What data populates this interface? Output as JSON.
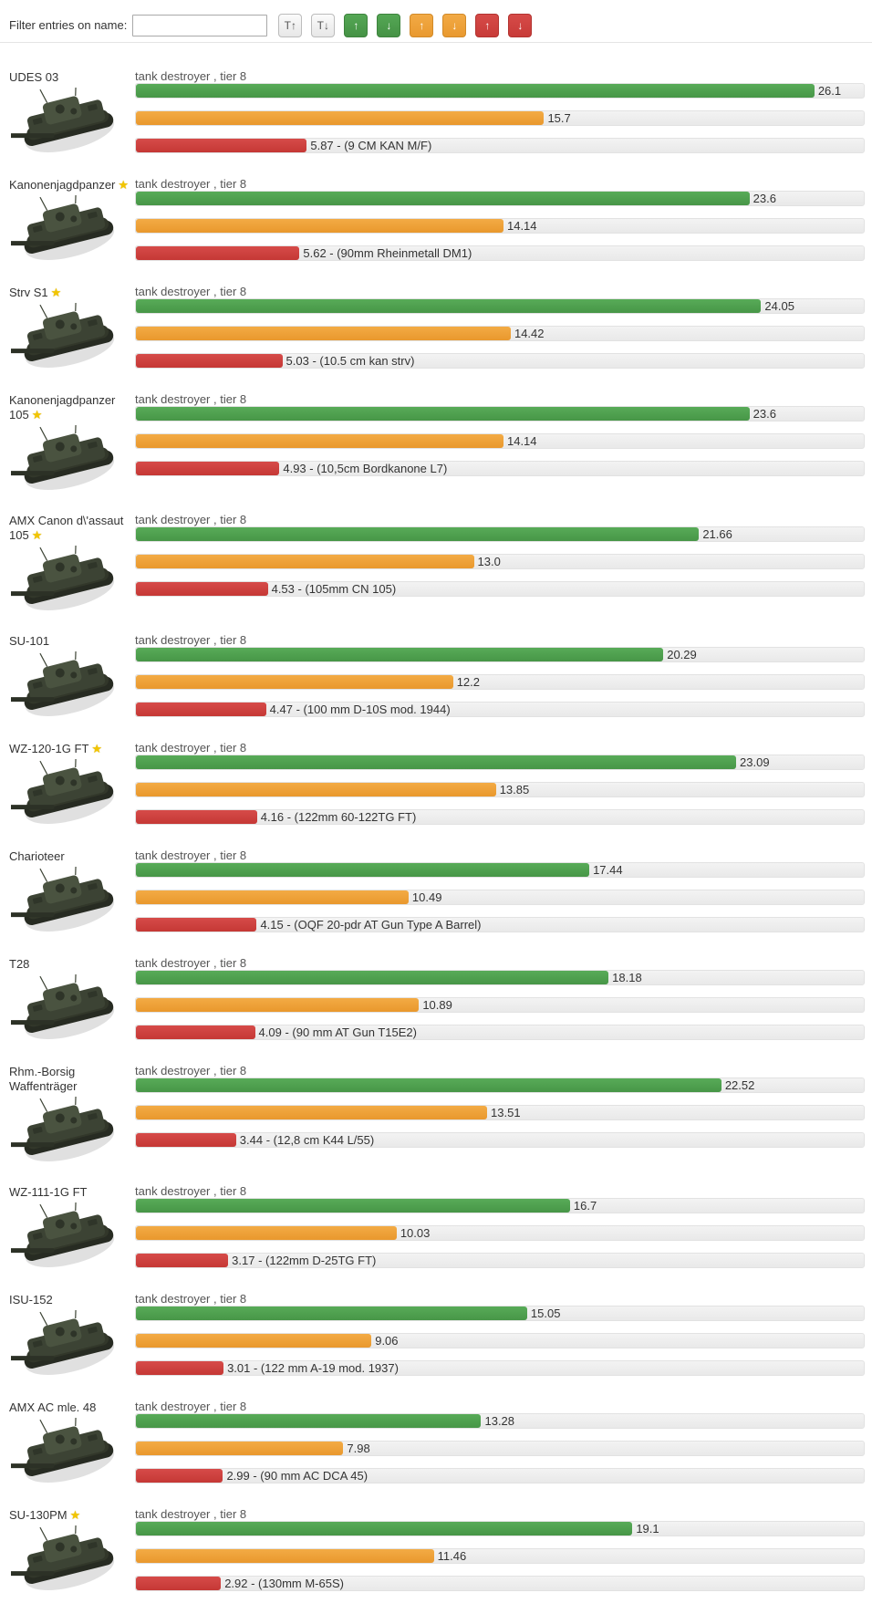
{
  "header": {
    "filter_label": "Filter entries on name:",
    "filter_value": "",
    "filter_placeholder": "",
    "sort_buttons": [
      {
        "name": "sort-name-asc-button",
        "label": "T↑",
        "style": "default"
      },
      {
        "name": "sort-name-desc-button",
        "label": "T↓",
        "style": "default"
      },
      {
        "name": "sort-green-asc-button",
        "label": "↑",
        "style": "green"
      },
      {
        "name": "sort-green-desc-button",
        "label": "↓",
        "style": "green"
      },
      {
        "name": "sort-orange-asc-button",
        "label": "↑",
        "style": "orange"
      },
      {
        "name": "sort-orange-desc-button",
        "label": "↓",
        "style": "orange"
      },
      {
        "name": "sort-red-asc-button",
        "label": "↑",
        "style": "red"
      },
      {
        "name": "sort-red-desc-button",
        "label": "↓",
        "style": "red"
      }
    ]
  },
  "colors": {
    "green": "#4ea24e",
    "orange": "#f0a43c",
    "red": "#d0403d",
    "star": "#f2c500",
    "track": "#ededed"
  },
  "bar_scale": {
    "green_max": 28,
    "orange_max": 28,
    "red_max": 25
  },
  "tanks": [
    {
      "name": "UDES 03",
      "star": false,
      "type_line": "tank destroyer , tier 8",
      "green": "26.1",
      "orange": "15.7",
      "red": "5.87",
      "gun": "9 CM KAN M/F"
    },
    {
      "name": "Kanonenjagdpanzer",
      "star": true,
      "type_line": "tank destroyer , tier 8",
      "green": "23.6",
      "orange": "14.14",
      "red": "5.62",
      "gun": "90mm Rheinmetall DM1"
    },
    {
      "name": "Strv S1",
      "star": true,
      "type_line": "tank destroyer , tier 8",
      "green": "24.05",
      "orange": "14.42",
      "red": "5.03",
      "gun": "10.5 cm kan strv"
    },
    {
      "name": "Kanonenjagdpanzer 105",
      "star": true,
      "type_line": "tank destroyer , tier 8",
      "green": "23.6",
      "orange": "14.14",
      "red": "4.93",
      "gun": "10,5cm Bordkanone L7"
    },
    {
      "name": "AMX Canon d\\'assaut 105",
      "star": true,
      "type_line": "tank destroyer , tier 8",
      "green": "21.66",
      "orange": "13.0",
      "red": "4.53",
      "gun": "105mm CN 105"
    },
    {
      "name": "SU-101",
      "star": false,
      "type_line": "tank destroyer , tier 8",
      "green": "20.29",
      "orange": "12.2",
      "red": "4.47",
      "gun": "100 mm D-10S mod. 1944"
    },
    {
      "name": "WZ-120-1G FT",
      "star": true,
      "type_line": "tank destroyer , tier 8",
      "green": "23.09",
      "orange": "13.85",
      "red": "4.16",
      "gun": "122mm 60-122TG FT"
    },
    {
      "name": "Charioteer",
      "star": false,
      "type_line": "tank destroyer , tier 8",
      "green": "17.44",
      "orange": "10.49",
      "red": "4.15",
      "gun": "OQF 20-pdr AT Gun Type A Barrel"
    },
    {
      "name": "T28",
      "star": false,
      "type_line": "tank destroyer , tier 8",
      "green": "18.18",
      "orange": "10.89",
      "red": "4.09",
      "gun": "90 mm AT Gun T15E2"
    },
    {
      "name": "Rhm.-Borsig Waffenträger",
      "star": false,
      "type_line": "tank destroyer , tier 8",
      "green": "22.52",
      "orange": "13.51",
      "red": "3.44",
      "gun": "12,8 cm K44 L/55"
    },
    {
      "name": "WZ-111-1G FT",
      "star": false,
      "type_line": "tank destroyer , tier 8",
      "green": "16.7",
      "orange": "10.03",
      "red": "3.17",
      "gun": "122mm D-25TG FT"
    },
    {
      "name": "ISU-152",
      "star": false,
      "type_line": "tank destroyer , tier 8",
      "green": "15.05",
      "orange": "9.06",
      "red": "3.01",
      "gun": "122 mm A-19 mod. 1937"
    },
    {
      "name": "AMX AC mle. 48",
      "star": false,
      "type_line": "tank destroyer , tier 8",
      "green": "13.28",
      "orange": "7.98",
      "red": "2.99",
      "gun": "90 mm AC DCA 45"
    },
    {
      "name": "SU-130PM",
      "star": true,
      "type_line": "tank destroyer , tier 8",
      "green": "19.1",
      "orange": "11.46",
      "red": "2.92",
      "gun": "130mm M-65S"
    }
  ]
}
